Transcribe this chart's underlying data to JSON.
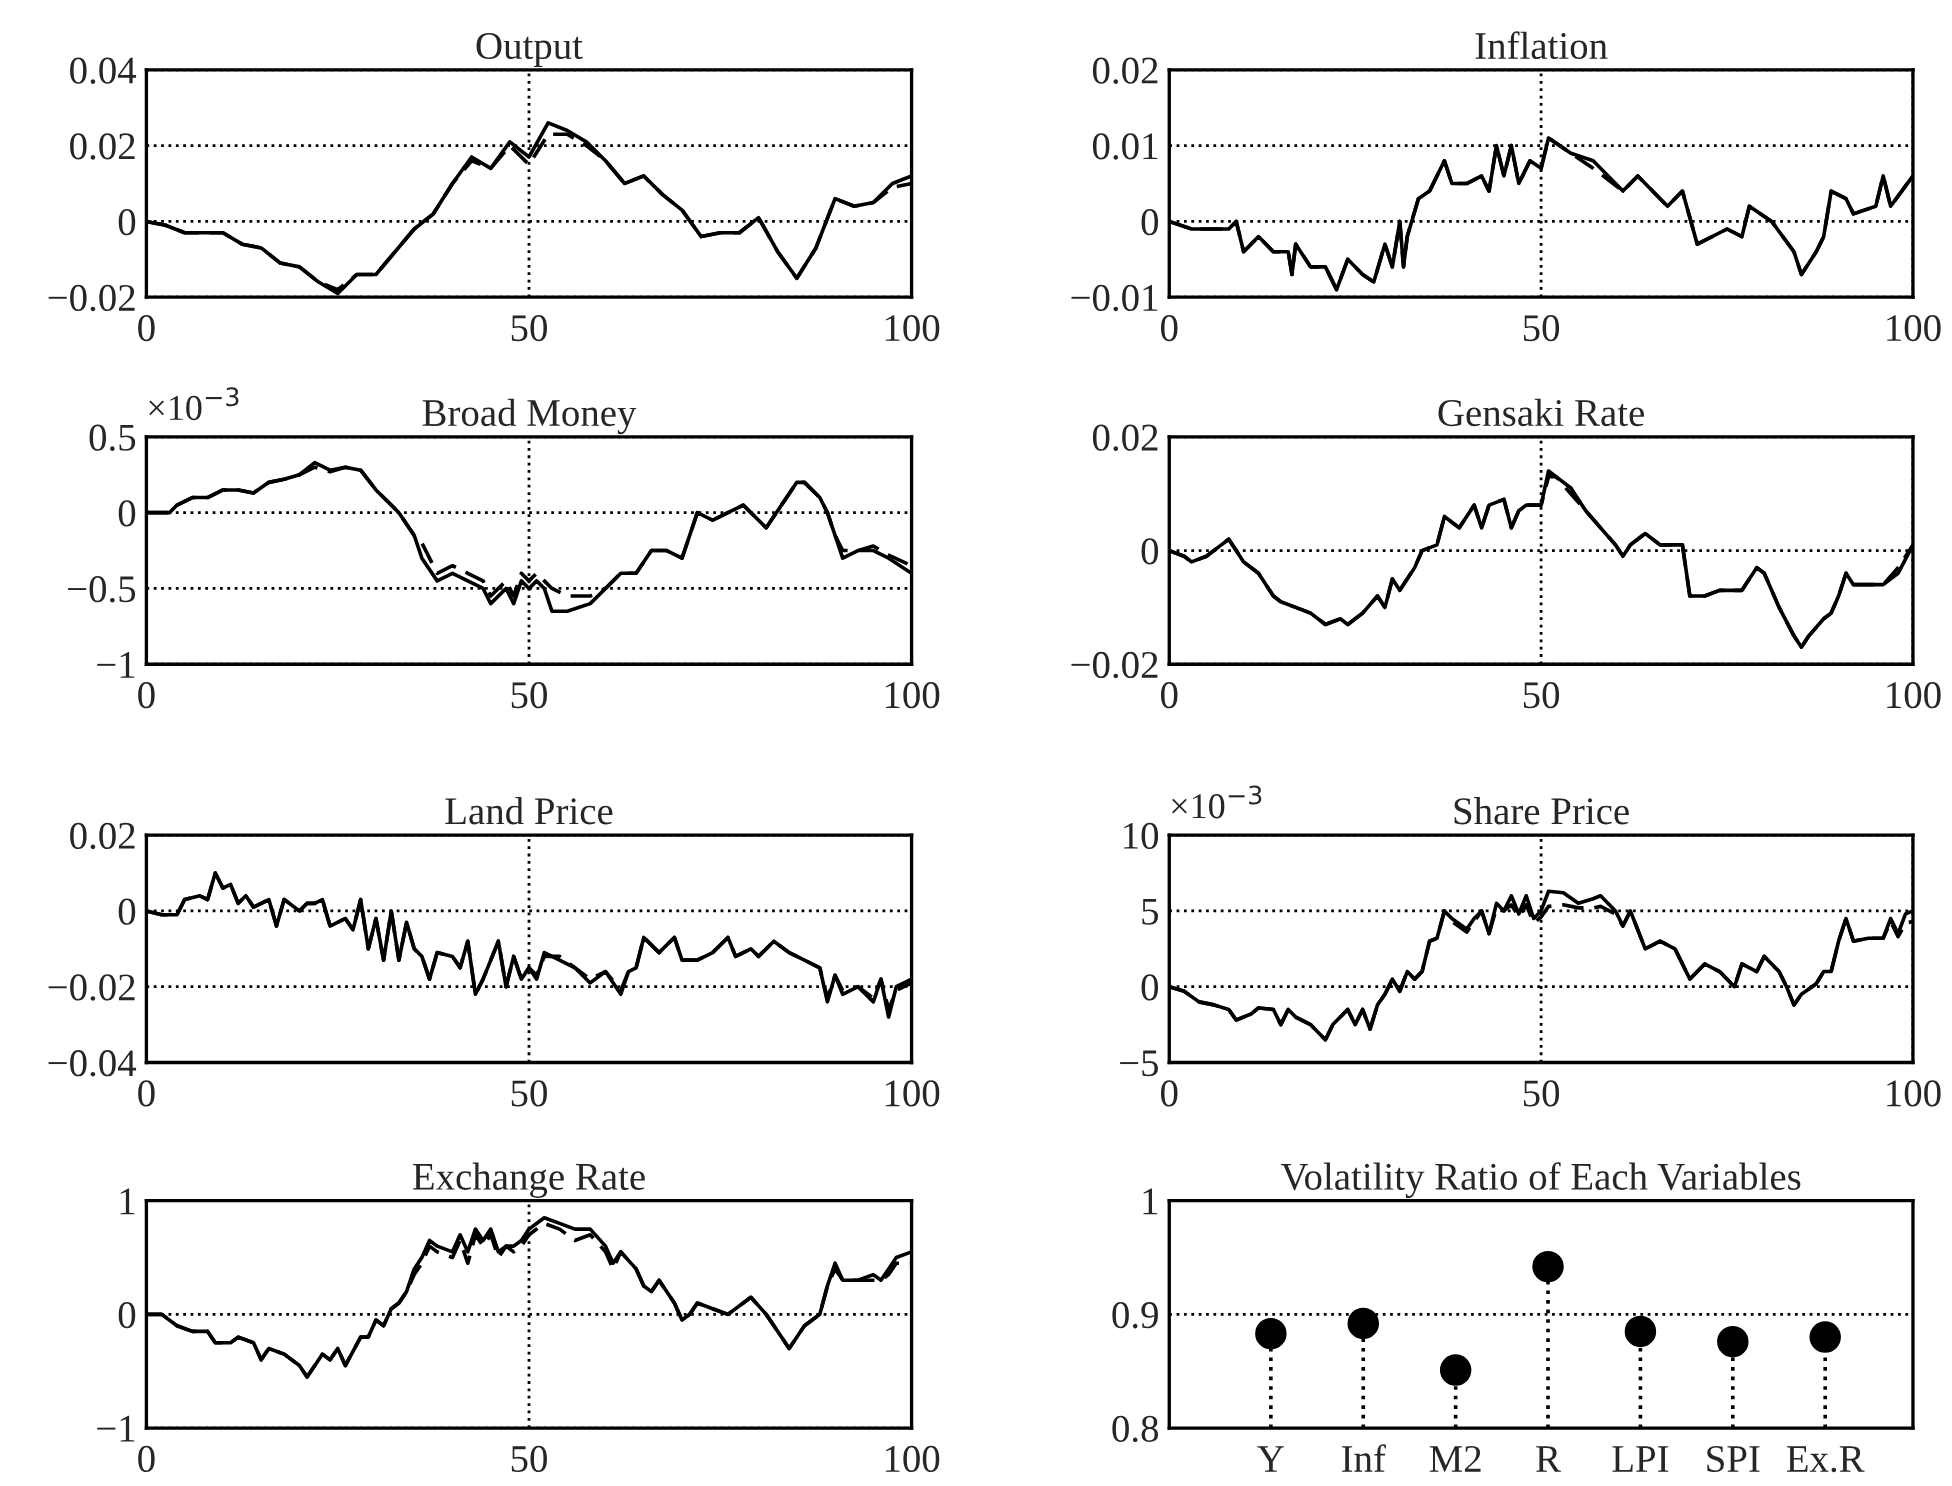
{
  "chart_data": [
    {
      "type": "line",
      "title": "Output",
      "grid": true,
      "xlim": [
        0,
        100
      ],
      "xticks": [
        0,
        50,
        100
      ],
      "ylim": [
        -0.02,
        0.04
      ],
      "yticks": [
        {
          "value": -0.02,
          "label": "−0.02"
        },
        0,
        0.02,
        0.04
      ],
      "x": [
        0,
        2.5,
        5,
        7.5,
        10,
        12.5,
        15,
        17.5,
        20,
        22.5,
        25,
        27.5,
        30,
        32.5,
        35,
        37.5,
        40,
        42.5,
        45,
        47.5,
        50,
        52.5,
        55,
        57.5,
        60,
        62.5,
        65,
        67.5,
        70,
        72.5,
        75,
        77.5,
        80,
        82.5,
        85,
        87.5,
        90,
        92.5,
        95,
        97.5,
        100
      ],
      "series": [
        {
          "color": "#000000",
          "line_style": "solid",
          "values": [
            0,
            -0.001,
            -0.003,
            -0.003,
            -0.003,
            -0.006,
            -0.007,
            -0.011,
            -0.012,
            -0.016,
            -0.019,
            -0.014,
            -0.014,
            -0.008,
            -0.002,
            0.002,
            0.01,
            0.017,
            0.014,
            0.021,
            0.017,
            0.026,
            0.024,
            0.021,
            0.016,
            0.01,
            0.012,
            0.007,
            0.003,
            -0.004,
            -0.003,
            -0.003,
            0.001,
            -0.008,
            -0.015,
            -0.007,
            0.006,
            0.004,
            0.005,
            0.01,
            0.012
          ]
        },
        {
          "color": "#000000",
          "line_style": "dashed",
          "values": [
            0,
            -0.001,
            -0.003,
            -0.003,
            -0.003,
            -0.006,
            -0.007,
            -0.011,
            -0.012,
            -0.016,
            -0.018,
            -0.014,
            -0.014,
            -0.008,
            -0.002,
            0.002,
            0.01,
            0.016,
            0.014,
            0.02,
            0.015,
            0.023,
            0.023,
            0.02,
            0.016,
            0.01,
            0.012,
            0.007,
            0.003,
            -0.004,
            -0.003,
            -0.003,
            0.001,
            -0.008,
            -0.015,
            -0.007,
            0.006,
            0.004,
            0.005,
            0.009,
            0.01
          ]
        }
      ]
    },
    {
      "type": "line",
      "title": "Inflation",
      "grid": true,
      "xlim": [
        0,
        100
      ],
      "xticks": [
        0,
        50,
        100
      ],
      "ylim": [
        -0.01,
        0.02
      ],
      "yticks": [
        {
          "value": -0.01,
          "label": "−0.01"
        },
        0,
        0.01,
        0.02
      ],
      "x": [
        0,
        3,
        5,
        8,
        9,
        10,
        12,
        14,
        16,
        16.5,
        17,
        19,
        21,
        22.5,
        24,
        26,
        27.5,
        29,
        30,
        31,
        31.5,
        32,
        33.5,
        35,
        37,
        38,
        40,
        42,
        43,
        44,
        45,
        46,
        47,
        48.5,
        50,
        51,
        54,
        57,
        61,
        63,
        67,
        69,
        71,
        75,
        77,
        78,
        81,
        84,
        85,
        87,
        88,
        89,
        91,
        92,
        95,
        96,
        97,
        100
      ],
      "series": [
        {
          "color": "#000000",
          "line_style": "solid",
          "values": [
            0,
            -0.001,
            -0.001,
            -0.001,
            0,
            -0.004,
            -0.002,
            -0.004,
            -0.004,
            -0.007,
            -0.003,
            -0.006,
            -0.006,
            -0.009,
            -0.005,
            -0.007,
            -0.008,
            -0.003,
            -0.006,
            0,
            -0.006,
            -0.002,
            0.003,
            0.004,
            0.008,
            0.005,
            0.005,
            0.006,
            0.004,
            0.01,
            0.006,
            0.01,
            0.005,
            0.008,
            0.007,
            0.011,
            0.009,
            0.008,
            0.004,
            0.006,
            0.002,
            0.004,
            -0.003,
            -0.001,
            -0.002,
            0.002,
            0,
            -0.004,
            -0.007,
            -0.004,
            -0.002,
            0.004,
            0.003,
            0.001,
            0.002,
            0.006,
            0.002,
            0.006
          ]
        },
        {
          "color": "#000000",
          "line_style": "dashed",
          "values": [
            0,
            -0.001,
            -0.001,
            -0.001,
            0,
            -0.004,
            -0.002,
            -0.004,
            -0.004,
            -0.007,
            -0.003,
            -0.006,
            -0.006,
            -0.009,
            -0.005,
            -0.007,
            -0.008,
            -0.003,
            -0.006,
            0,
            -0.006,
            -0.002,
            0.003,
            0.004,
            0.008,
            0.005,
            0.005,
            0.006,
            0.004,
            0.01,
            0.006,
            0.01,
            0.005,
            0.008,
            0.007,
            0.011,
            0.009,
            0.007,
            0.004,
            0.006,
            0.002,
            0.004,
            -0.003,
            -0.001,
            -0.002,
            0.002,
            0,
            -0.004,
            -0.007,
            -0.004,
            -0.002,
            0.004,
            0.003,
            0.001,
            0.002,
            0.006,
            0.002,
            0.006
          ]
        }
      ]
    },
    {
      "type": "line",
      "title": "Broad Money",
      "annotations": [
        "×10$^{−3}$"
      ],
      "grid": true,
      "xlim": [
        0,
        100
      ],
      "xticks": [
        0,
        50,
        100
      ],
      "ylim": [
        -1,
        0.5
      ],
      "yticks": [
        {
          "value": -1,
          "label": "−1"
        },
        {
          "value": -0.5,
          "label": "−0.5"
        },
        0,
        0.5
      ],
      "x": [
        0,
        3,
        4,
        6,
        8,
        10,
        12,
        14,
        16,
        18,
        20,
        22,
        24,
        26,
        28,
        30,
        32,
        33,
        35,
        36,
        38,
        40,
        42,
        44,
        45,
        47,
        48,
        49,
        50,
        51,
        52,
        53,
        55,
        58,
        60,
        62,
        64,
        66,
        68,
        70,
        72,
        74,
        76,
        78,
        80,
        81,
        83,
        85,
        86,
        88,
        89,
        90,
        91,
        93,
        95,
        97,
        100
      ],
      "series": [
        {
          "color": "#000000",
          "line_style": "solid",
          "values": [
            0,
            0,
            0.05,
            0.1,
            0.1,
            0.15,
            0.15,
            0.13,
            0.2,
            0.22,
            0.25,
            0.33,
            0.28,
            0.3,
            0.28,
            0.15,
            0.05,
            0,
            -0.15,
            -0.3,
            -0.45,
            -0.4,
            -0.45,
            -0.5,
            -0.6,
            -0.5,
            -0.6,
            -0.45,
            -0.5,
            -0.45,
            -0.5,
            -0.65,
            -0.65,
            -0.6,
            -0.5,
            -0.4,
            -0.4,
            -0.25,
            -0.25,
            -0.3,
            0,
            -0.05,
            0,
            0.05,
            -0.05,
            -0.1,
            0.05,
            0.2,
            0.2,
            0.1,
            0,
            -0.15,
            -0.3,
            -0.25,
            -0.25,
            -0.3,
            -0.4
          ]
        },
        {
          "color": "#000000",
          "line_style": "dashed",
          "values": [
            0,
            0,
            0.05,
            0.1,
            0.1,
            0.15,
            0.15,
            0.13,
            0.2,
            0.22,
            0.25,
            0.3,
            0.27,
            0.3,
            0.28,
            0.15,
            0.05,
            0,
            -0.15,
            -0.2,
            -0.4,
            -0.35,
            -0.4,
            -0.45,
            -0.55,
            -0.45,
            -0.55,
            -0.4,
            -0.45,
            -0.4,
            -0.45,
            -0.5,
            -0.55,
            -0.55,
            -0.5,
            -0.4,
            -0.4,
            -0.25,
            -0.25,
            -0.3,
            0,
            -0.05,
            0,
            0.05,
            -0.05,
            -0.1,
            0.05,
            0.2,
            0.2,
            0.1,
            0,
            -0.15,
            -0.25,
            -0.25,
            -0.22,
            -0.28,
            -0.35
          ]
        }
      ]
    },
    {
      "type": "line",
      "title": "Gensaki Rate",
      "grid": true,
      "xlim": [
        0,
        100
      ],
      "xticks": [
        0,
        50,
        100
      ],
      "ylim": [
        -0.02,
        0.02
      ],
      "yticks": [
        {
          "value": -0.02,
          "label": "−0.02"
        },
        0,
        0.02
      ],
      "x": [
        0,
        2,
        3,
        5,
        7,
        8,
        9,
        10,
        12,
        14,
        15,
        17,
        19,
        21,
        23,
        24,
        26,
        28,
        29,
        30,
        31,
        33,
        34,
        36,
        37,
        39,
        41,
        42,
        43,
        45,
        46,
        47,
        48,
        50,
        51,
        52,
        54,
        56,
        58,
        60,
        61,
        62,
        64,
        66,
        69,
        70,
        72,
        74,
        77,
        79,
        80,
        82,
        84,
        85,
        86,
        88,
        89,
        90,
        91,
        92,
        94,
        96,
        98,
        100
      ],
      "series": [
        {
          "color": "#000000",
          "line_style": "solid",
          "values": [
            0,
            -0.001,
            -0.002,
            -0.001,
            0.001,
            0.002,
            0,
            -0.002,
            -0.004,
            -0.008,
            -0.009,
            -0.01,
            -0.011,
            -0.013,
            -0.012,
            -0.013,
            -0.011,
            -0.008,
            -0.01,
            -0.005,
            -0.007,
            -0.003,
            0,
            0.001,
            0.006,
            0.004,
            0.008,
            0.004,
            0.008,
            0.009,
            0.004,
            0.007,
            0.008,
            0.008,
            0.014,
            0.013,
            0.011,
            0.007,
            0.004,
            0.001,
            -0.001,
            0.001,
            0.003,
            0.001,
            0.001,
            -0.008,
            -0.008,
            -0.007,
            -0.007,
            -0.003,
            -0.004,
            -0.01,
            -0.015,
            -0.017,
            -0.015,
            -0.012,
            -0.011,
            -0.008,
            -0.004,
            -0.006,
            -0.006,
            -0.006,
            -0.004,
            0.001
          ]
        },
        {
          "color": "#000000",
          "line_style": "dashed",
          "values": [
            0,
            -0.001,
            -0.002,
            -0.001,
            0.001,
            0.002,
            0,
            -0.002,
            -0.004,
            -0.008,
            -0.009,
            -0.01,
            -0.011,
            -0.013,
            -0.012,
            -0.013,
            -0.011,
            -0.008,
            -0.01,
            -0.005,
            -0.007,
            -0.003,
            0,
            0.001,
            0.006,
            0.004,
            0.008,
            0.004,
            0.008,
            0.009,
            0.004,
            0.007,
            0.008,
            0.008,
            0.013,
            0.013,
            0.01,
            0.007,
            0.004,
            0.001,
            -0.001,
            0.001,
            0.003,
            0.001,
            0.001,
            -0.008,
            -0.008,
            -0.007,
            -0.007,
            -0.003,
            -0.004,
            -0.01,
            -0.015,
            -0.017,
            -0.015,
            -0.012,
            -0.011,
            -0.008,
            -0.004,
            -0.006,
            -0.006,
            -0.006,
            -0.003,
            0.001
          ]
        }
      ]
    },
    {
      "type": "line",
      "title": "Land Price",
      "grid": true,
      "xlim": [
        0,
        100
      ],
      "xticks": [
        0,
        50,
        100
      ],
      "ylim": [
        -0.04,
        0.02
      ],
      "yticks": [
        {
          "value": -0.04,
          "label": "−0.04"
        },
        {
          "value": -0.02,
          "label": "−0.02"
        },
        0,
        0.02
      ],
      "x": [
        0,
        2,
        4,
        5,
        7,
        8,
        9,
        10,
        11,
        12,
        13,
        14,
        15,
        16,
        17,
        18,
        20,
        21,
        22,
        23,
        24,
        26,
        27,
        28,
        29,
        30,
        31,
        32,
        33,
        34,
        35,
        36,
        37,
        38,
        40,
        41,
        42,
        43,
        44,
        46,
        47,
        48,
        49,
        50,
        51,
        52,
        54,
        56,
        58,
        60,
        62,
        63,
        64,
        65,
        67,
        69,
        70,
        72,
        74,
        76,
        77,
        79,
        80,
        82,
        84,
        86,
        88,
        89,
        90,
        91,
        93,
        95,
        96,
        97,
        98,
        100
      ],
      "series": [
        {
          "color": "#000000",
          "line_style": "solid",
          "values": [
            0,
            -0.001,
            -0.001,
            0.003,
            0.004,
            0.003,
            0.01,
            0.006,
            0.007,
            0.002,
            0.004,
            0.001,
            0.002,
            0.003,
            -0.004,
            0.003,
            0,
            0.002,
            0.002,
            0.003,
            -0.004,
            -0.002,
            -0.005,
            0.003,
            -0.01,
            -0.002,
            -0.013,
            0,
            -0.013,
            -0.003,
            -0.01,
            -0.012,
            -0.018,
            -0.011,
            -0.012,
            -0.015,
            -0.008,
            -0.022,
            -0.018,
            -0.008,
            -0.02,
            -0.012,
            -0.018,
            -0.015,
            -0.018,
            -0.011,
            -0.013,
            -0.015,
            -0.019,
            -0.016,
            -0.022,
            -0.016,
            -0.015,
            -0.007,
            -0.011,
            -0.007,
            -0.013,
            -0.013,
            -0.011,
            -0.007,
            -0.012,
            -0.01,
            -0.012,
            -0.008,
            -0.011,
            -0.013,
            -0.015,
            -0.024,
            -0.017,
            -0.022,
            -0.02,
            -0.024,
            -0.018,
            -0.028,
            -0.02,
            -0.018
          ]
        },
        {
          "color": "#000000",
          "line_style": "dashed",
          "values": [
            0,
            -0.001,
            -0.001,
            0.003,
            0.004,
            0.003,
            0.01,
            0.006,
            0.007,
            0.002,
            0.004,
            0.001,
            0.002,
            0.003,
            -0.004,
            0.003,
            0,
            0.002,
            0.002,
            0.003,
            -0.004,
            -0.002,
            -0.005,
            0.003,
            -0.01,
            -0.002,
            -0.013,
            0,
            -0.013,
            -0.003,
            -0.01,
            -0.012,
            -0.018,
            -0.011,
            -0.012,
            -0.015,
            -0.008,
            -0.022,
            -0.018,
            -0.008,
            -0.02,
            -0.012,
            -0.018,
            -0.015,
            -0.017,
            -0.012,
            -0.012,
            -0.015,
            -0.018,
            -0.016,
            -0.021,
            -0.016,
            -0.015,
            -0.007,
            -0.011,
            -0.007,
            -0.013,
            -0.013,
            -0.011,
            -0.007,
            -0.012,
            -0.01,
            -0.012,
            -0.008,
            -0.011,
            -0.013,
            -0.015,
            -0.023,
            -0.017,
            -0.021,
            -0.02,
            -0.023,
            -0.018,
            -0.026,
            -0.021,
            -0.019
          ]
        }
      ]
    },
    {
      "type": "line",
      "title": "Share Price",
      "annotations": [
        "×10$^{−3}$"
      ],
      "grid": true,
      "xlim": [
        0,
        100
      ],
      "xticks": [
        0,
        50,
        100
      ],
      "ylim": [
        -5,
        10
      ],
      "yticks": [
        {
          "value": -5,
          "label": "−5"
        },
        0,
        5,
        10
      ],
      "x": [
        0,
        2,
        4,
        6,
        8,
        9,
        11,
        12,
        14,
        15,
        16,
        17,
        19,
        20,
        21,
        22,
        23,
        24,
        25,
        26,
        27,
        28,
        29,
        30,
        31,
        32,
        33,
        34,
        35,
        36,
        37,
        38,
        40,
        41,
        42,
        43,
        44,
        45,
        46,
        47,
        48,
        49,
        50,
        51,
        53,
        55,
        57,
        58,
        60,
        61,
        62,
        64,
        66,
        68,
        70,
        72,
        74,
        76,
        77,
        79,
        80,
        82,
        83,
        84,
        85,
        87,
        88,
        89,
        90,
        91,
        92,
        94,
        96,
        97,
        98,
        99,
        100
      ],
      "series": [
        {
          "color": "#000000",
          "line_style": "solid",
          "values": [
            0,
            -0.3,
            -1,
            -1.2,
            -1.5,
            -2.2,
            -1.8,
            -1.4,
            -1.5,
            -2.5,
            -1.5,
            -2,
            -2.5,
            -3,
            -3.5,
            -2.5,
            -2,
            -1.5,
            -2.5,
            -1.5,
            -2.8,
            -1.2,
            -0.5,
            0.5,
            -0.3,
            1,
            0.5,
            1,
            3,
            3.2,
            5,
            4.5,
            3.8,
            4.5,
            5,
            3.5,
            5.5,
            5,
            6,
            4.8,
            6,
            4.5,
            5,
            6.3,
            6.2,
            5.5,
            5.8,
            6,
            5,
            4,
            5,
            2.5,
            3,
            2.5,
            0.5,
            1.5,
            1,
            0,
            1.5,
            1,
            2,
            1,
            0,
            -1.2,
            -0.5,
            0.2,
            1,
            1,
            3,
            4.5,
            3,
            3.2,
            3.2,
            4.5,
            3.5,
            4.8,
            5
          ]
        },
        {
          "color": "#000000",
          "line_style": "dashed",
          "values": [
            0,
            -0.3,
            -1,
            -1.2,
            -1.5,
            -2.2,
            -1.8,
            -1.4,
            -1.5,
            -2.5,
            -1.5,
            -2,
            -2.5,
            -3,
            -3.5,
            -2.5,
            -2,
            -1.5,
            -2.5,
            -1.5,
            -2.8,
            -1.2,
            -0.5,
            0.5,
            -0.3,
            1,
            0.5,
            1,
            3,
            3.2,
            5,
            4.3,
            3.6,
            4.3,
            5,
            3.5,
            5.2,
            5,
            5.4,
            4.6,
            5.4,
            4.2,
            4.6,
            5.3,
            5.4,
            5.2,
            5.2,
            5.3,
            4.8,
            4,
            5,
            2.5,
            3,
            2.5,
            0.5,
            1.5,
            1,
            0,
            1.5,
            1,
            2,
            1,
            0,
            -1.2,
            -0.5,
            0.2,
            1,
            1,
            3,
            4.5,
            3,
            3.2,
            3.2,
            4.3,
            3.3,
            4.2,
            4.3
          ]
        }
      ]
    },
    {
      "type": "line",
      "title": "Exchange Rate",
      "grid": true,
      "xlim": [
        0,
        100
      ],
      "xticks": [
        0,
        50,
        100
      ],
      "ylim": [
        -1,
        1
      ],
      "yticks": [
        {
          "value": -1,
          "label": "−1"
        },
        0,
        1
      ],
      "x": [
        0,
        2,
        4,
        6,
        8,
        9,
        11,
        12,
        14,
        15,
        16,
        18,
        20,
        21,
        23,
        24,
        25,
        26,
        28,
        29,
        30,
        31,
        32,
        33,
        34,
        35,
        36,
        37,
        38,
        40,
        41,
        42,
        43,
        44,
        45,
        46,
        47,
        48,
        49,
        50,
        52,
        54,
        56,
        58,
        60,
        61,
        62,
        64,
        65,
        66,
        67,
        69,
        70,
        71,
        72,
        74,
        76,
        78,
        79,
        81,
        83,
        84,
        86,
        88,
        89,
        90,
        91,
        93,
        95,
        96,
        97,
        98,
        100
      ],
      "series": [
        {
          "color": "#000000",
          "line_style": "solid",
          "values": [
            0,
            0,
            -0.1,
            -0.15,
            -0.15,
            -0.25,
            -0.25,
            -0.2,
            -0.25,
            -0.4,
            -0.3,
            -0.35,
            -0.45,
            -0.55,
            -0.35,
            -0.4,
            -0.3,
            -0.45,
            -0.2,
            -0.2,
            -0.05,
            -0.1,
            0.05,
            0.1,
            0.2,
            0.4,
            0.5,
            0.65,
            0.6,
            0.55,
            0.7,
            0.55,
            0.75,
            0.65,
            0.75,
            0.55,
            0.6,
            0.6,
            0.65,
            0.75,
            0.85,
            0.8,
            0.75,
            0.75,
            0.6,
            0.45,
            0.55,
            0.4,
            0.25,
            0.2,
            0.3,
            0.1,
            -0.05,
            0,
            0.1,
            0.05,
            0,
            0.1,
            0.15,
            0,
            -0.2,
            -0.3,
            -0.1,
            0,
            0.25,
            0.45,
            0.3,
            0.3,
            0.35,
            0.3,
            0.4,
            0.5,
            0.55
          ]
        },
        {
          "color": "#000000",
          "line_style": "dashed",
          "values": [
            0,
            0,
            -0.1,
            -0.15,
            -0.15,
            -0.25,
            -0.25,
            -0.2,
            -0.25,
            -0.4,
            -0.3,
            -0.35,
            -0.45,
            -0.55,
            -0.35,
            -0.4,
            -0.3,
            -0.45,
            -0.2,
            -0.2,
            -0.05,
            -0.1,
            0.05,
            0.1,
            0.2,
            0.35,
            0.45,
            0.6,
            0.55,
            0.5,
            0.65,
            0.45,
            0.7,
            0.6,
            0.7,
            0.5,
            0.6,
            0.55,
            0.6,
            0.7,
            0.8,
            0.75,
            0.65,
            0.7,
            0.55,
            0.4,
            0.55,
            0.4,
            0.25,
            0.2,
            0.3,
            0.1,
            -0.05,
            0,
            0.1,
            0.05,
            0,
            0.1,
            0.15,
            0,
            -0.2,
            -0.3,
            -0.1,
            0,
            0.25,
            0.4,
            0.3,
            0.3,
            0.3,
            0.3,
            0.35,
            0.45,
            0.45
          ]
        }
      ]
    },
    {
      "type": "lollipop",
      "title": "Volatility Ratio of Each Variables",
      "ref_lines": [
        {
          "axis": "y",
          "value": 0.9,
          "color": "#000000",
          "line_style": "dotted"
        }
      ],
      "ylim": [
        0.8,
        1
      ],
      "yticks": [
        0.8,
        0.9,
        1
      ],
      "categories": [
        "Y",
        "Inf",
        "M2",
        "R",
        "LPI",
        "SPI",
        "Ex.R"
      ],
      "values": [
        0.883,
        0.892,
        0.851,
        0.942,
        0.885,
        0.876,
        0.88
      ],
      "color": "#000000",
      "line_style": "dotted",
      "marker": "circle"
    }
  ]
}
